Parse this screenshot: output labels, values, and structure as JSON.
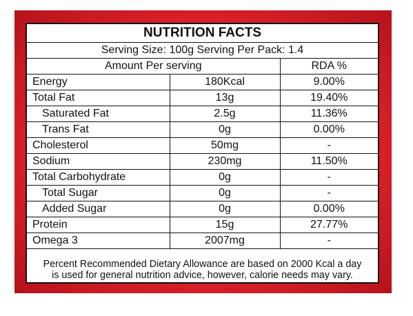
{
  "title": "NUTRITION FACTS",
  "serving": "Serving Size: 100g Serving Per Pack: 1.4",
  "headers": [
    "Amount Per serving",
    "RDA %"
  ],
  "rows": [
    {
      "name": "Energy",
      "amount": "180Kcal",
      "rda": "9.00%"
    },
    {
      "name": "Total Fat",
      "amount": "13g",
      "rda": "19.40%"
    },
    {
      "name": "Saturated Fat",
      "amount": "2.5g",
      "rda": "11.36%",
      "sub": true
    },
    {
      "name": "Trans Fat",
      "amount": "0g",
      "rda": "0.00%",
      "sub": true
    },
    {
      "name": "Cholesterol",
      "amount": "50mg",
      "rda": "-"
    },
    {
      "name": "Sodium",
      "amount": "230mg",
      "rda": "11.50%"
    },
    {
      "name": "Total Carbohydrate",
      "amount": "0g",
      "rda": "-"
    },
    {
      "name": "Total Sugar",
      "amount": "0g",
      "rda": "-",
      "sub": true
    },
    {
      "name": "Added Sugar",
      "amount": "0g",
      "rda": "0.00%",
      "sub": true
    },
    {
      "name": "Protein",
      "amount": "15g",
      "rda": "27.77%"
    },
    {
      "name": "Omega 3",
      "amount": "2007mg",
      "rda": "-"
    }
  ],
  "footer": [
    "Percent Recommended Dietary Allowance are based on 2000 Kcal a day",
    "is used for general nutrition advice, however, calorie needs may vary."
  ]
}
